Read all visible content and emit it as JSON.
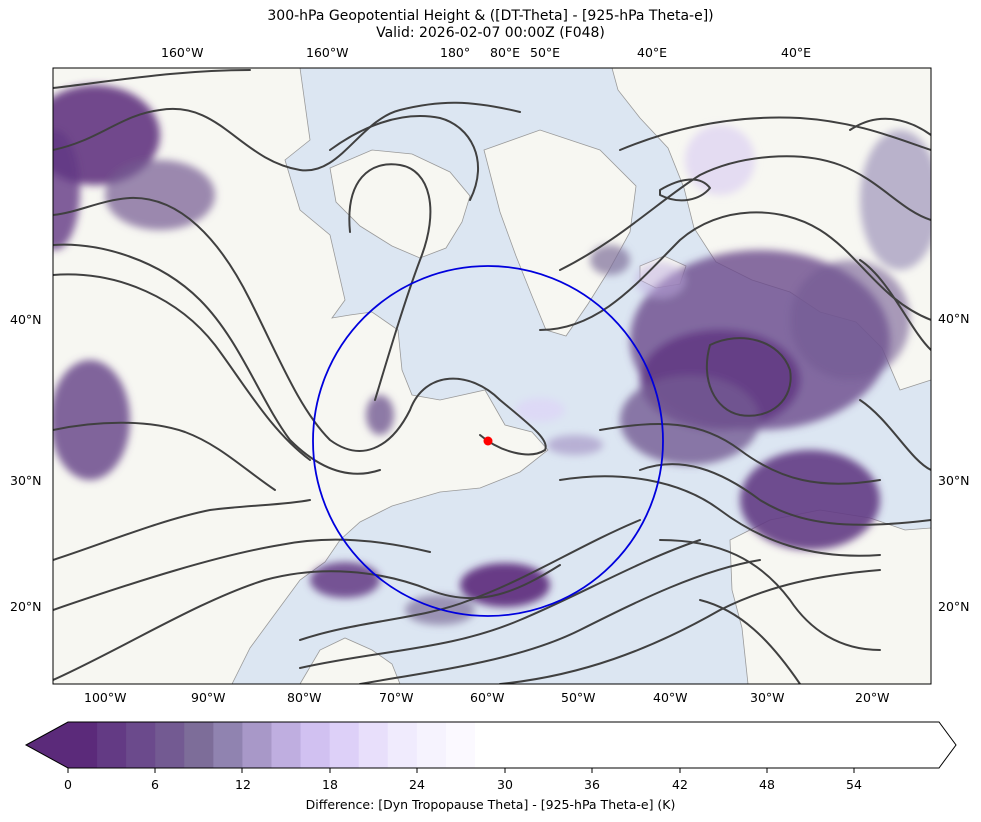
{
  "title_line1": "300-hPa Geopotential Height & ([DT-Theta] - [925-hPa Theta-e])",
  "title_line2": "Valid: 2026-02-07 00:00Z (F048)",
  "map": {
    "top_lon_labels": [
      "160°W",
      "160°W",
      "180°",
      "80°E",
      "50°E",
      "40°E",
      "40°E"
    ],
    "bottom_lon_labels": [
      "100°W",
      "90°W",
      "80°W",
      "70°W",
      "60°W",
      "50°W",
      "40°W",
      "30°W",
      "20°W"
    ],
    "left_lat_labels": [
      "40°N",
      "30°N",
      "20°N"
    ],
    "right_lat_labels": [
      "40°N",
      "30°N",
      "20°N"
    ],
    "ocean_color": "#dce6f2",
    "land_color": "#f7f7f2",
    "contour_color": "#404040",
    "circle_color": "#0000dd",
    "marker_color": "#ff0000"
  },
  "colorbar": {
    "tick_labels": [
      "0",
      "6",
      "12",
      "18",
      "24",
      "30",
      "36",
      "42",
      "48",
      "54"
    ],
    "label": "Difference: [Dyn Tropopause Theta] - [925-hPa Theta-e] (K)",
    "colors": [
      "#5b2a7a",
      "#633a84",
      "#6b4a8c",
      "#735a92",
      "#7d6d99",
      "#9083b0",
      "#a898c8",
      "#bfaee0",
      "#d1c1f1",
      "#ddd0f8",
      "#e8dffb",
      "#f0ebfd",
      "#f6f3fe",
      "#fbf9ff"
    ]
  }
}
